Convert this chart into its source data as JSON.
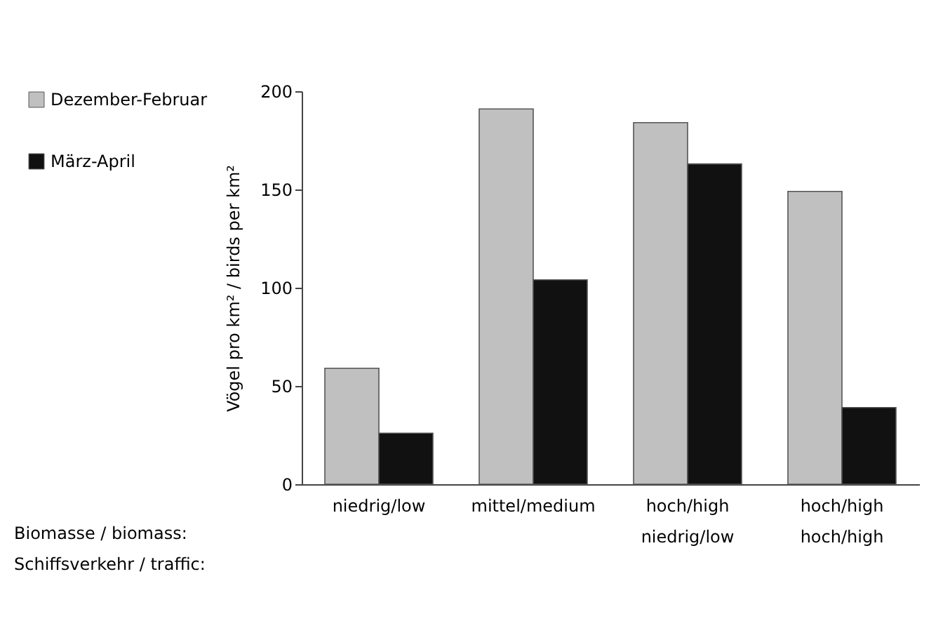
{
  "chart_data": {
    "type": "bar",
    "ylabel": "Vögel pro km² / birds per km²",
    "categories": [
      "niedrig/low",
      "mittel/medium",
      "hoch/high\nniedrig/low",
      "hoch/high\nhoch/high"
    ],
    "series": [
      {
        "name": "Dezember-Februar",
        "color": "#c0c0c0",
        "values": [
          59,
          191,
          184,
          149
        ]
      },
      {
        "name": "März-April",
        "color": "#111111",
        "values": [
          26,
          104,
          163,
          39
        ]
      }
    ],
    "ylim": [
      0,
      200
    ],
    "yticks": [
      0,
      50,
      100,
      150,
      200
    ],
    "grid": false,
    "legend": "top left",
    "annotations": [
      "Biomasse / biomass:",
      "Schiffsverkehr / traffic:"
    ]
  }
}
